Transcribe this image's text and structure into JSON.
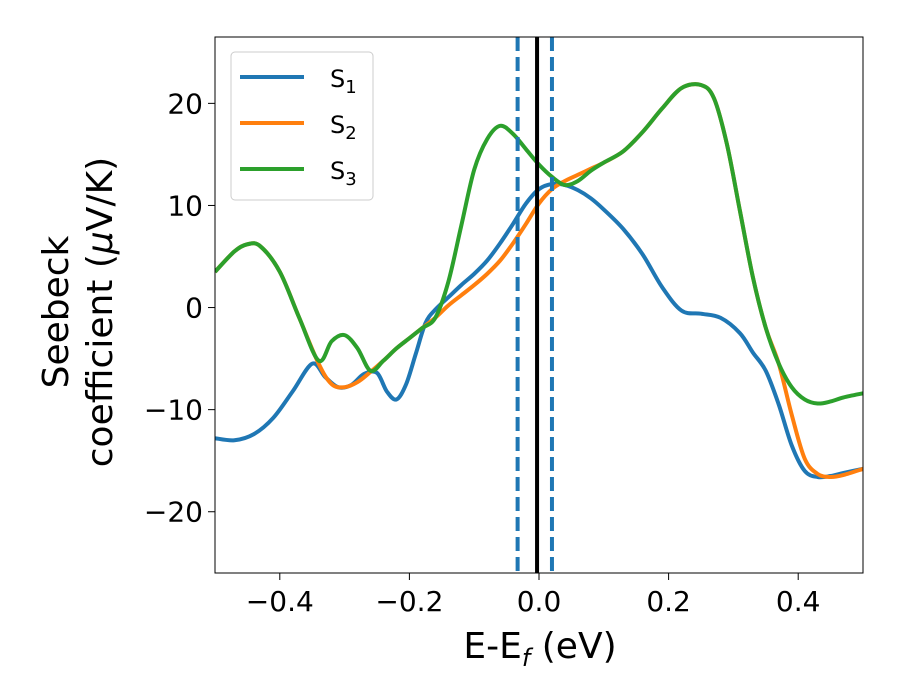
{
  "chart_data": {
    "type": "line",
    "xlabel": {
      "main": "E-E",
      "sub": "f",
      "tail": " (eV)"
    },
    "ylabel": {
      "line1": "Seebeck",
      "line2_pre": "coefficient  (",
      "line2_mu": "μ",
      "line2_post": "V/K)"
    },
    "xlim": [
      -0.5,
      0.5
    ],
    "ylim": [
      -26,
      26.5
    ],
    "xticks": [
      -0.4,
      -0.2,
      0.0,
      0.2,
      0.4
    ],
    "xtick_labels": [
      "−0.4",
      "−0.2",
      "0.0",
      "0.2",
      "0.4"
    ],
    "yticks": [
      -20,
      -10,
      0,
      10,
      20
    ],
    "ytick_labels": [
      "−20",
      "−10",
      "0",
      "10",
      "20"
    ],
    "grid": false,
    "legend_position": "top-left",
    "vlines": [
      {
        "x": -0.033,
        "style": "dashed",
        "color": "#1f77b4"
      },
      {
        "x": -0.003,
        "style": "solid",
        "color": "#000000"
      },
      {
        "x": 0.02,
        "style": "dashed",
        "color": "#1f77b4"
      }
    ],
    "series": [
      {
        "name": "S",
        "sub": "1",
        "color": "#1f77b4",
        "x": [
          -0.5,
          -0.47,
          -0.44,
          -0.41,
          -0.38,
          -0.35,
          -0.33,
          -0.31,
          -0.29,
          -0.27,
          -0.25,
          -0.235,
          -0.22,
          -0.205,
          -0.19,
          -0.175,
          -0.16,
          -0.14,
          -0.12,
          -0.1,
          -0.08,
          -0.06,
          -0.04,
          -0.02,
          0.0,
          0.02,
          0.04,
          0.06,
          0.08,
          0.1,
          0.13,
          0.16,
          0.19,
          0.22,
          0.25,
          0.28,
          0.31,
          0.33,
          0.35,
          0.37,
          0.39,
          0.41,
          0.43,
          0.45,
          0.47,
          0.5
        ],
        "y": [
          -12.8,
          -13.0,
          -12.4,
          -10.8,
          -8.2,
          -5.5,
          -6.8,
          -7.8,
          -7.6,
          -6.5,
          -6.4,
          -8.2,
          -9.0,
          -7.5,
          -4.5,
          -1.5,
          -0.2,
          1.0,
          2.2,
          3.3,
          4.6,
          6.3,
          8.2,
          10.2,
          11.6,
          12.1,
          12.0,
          11.5,
          10.7,
          9.6,
          7.7,
          5.2,
          2.0,
          -0.3,
          -0.6,
          -1.0,
          -2.5,
          -4.4,
          -6.2,
          -9.5,
          -13.5,
          -16.0,
          -16.6,
          -16.5,
          -16.2,
          -15.8
        ]
      },
      {
        "name": "S",
        "sub": "2",
        "color": "#ff7f0e",
        "x": [
          -0.5,
          -0.47,
          -0.45,
          -0.43,
          -0.4,
          -0.37,
          -0.34,
          -0.32,
          -0.3,
          -0.28,
          -0.26,
          -0.24,
          -0.22,
          -0.2,
          -0.18,
          -0.16,
          -0.14,
          -0.12,
          -0.1,
          -0.08,
          -0.06,
          -0.04,
          -0.02,
          0.0,
          0.02,
          0.04,
          0.06,
          0.08,
          0.1,
          0.13,
          0.16,
          0.19,
          0.22,
          0.25,
          0.27,
          0.29,
          0.31,
          0.33,
          0.35,
          0.37,
          0.39,
          0.41,
          0.43,
          0.45,
          0.47,
          0.5
        ],
        "y": [
          3.5,
          5.5,
          6.2,
          6.0,
          3.5,
          -1.0,
          -5.5,
          -7.5,
          -7.8,
          -7.3,
          -6.3,
          -5.2,
          -4.0,
          -3.0,
          -2.0,
          -1.0,
          0.2,
          1.2,
          2.2,
          3.3,
          4.6,
          6.3,
          8.2,
          10.2,
          11.6,
          12.4,
          13.0,
          13.6,
          14.2,
          15.3,
          17.2,
          19.5,
          21.5,
          21.8,
          20.5,
          16.0,
          9.5,
          3.0,
          -2.0,
          -5.5,
          -10.5,
          -14.8,
          -16.3,
          -16.6,
          -16.4,
          -15.8
        ]
      },
      {
        "name": "S",
        "sub": "3",
        "color": "#2ca02c",
        "x": [
          -0.5,
          -0.47,
          -0.45,
          -0.43,
          -0.4,
          -0.37,
          -0.34,
          -0.32,
          -0.3,
          -0.28,
          -0.26,
          -0.24,
          -0.22,
          -0.2,
          -0.18,
          -0.16,
          -0.14,
          -0.12,
          -0.1,
          -0.08,
          -0.06,
          -0.04,
          -0.02,
          0.0,
          0.02,
          0.04,
          0.06,
          0.08,
          0.1,
          0.13,
          0.16,
          0.19,
          0.22,
          0.25,
          0.27,
          0.29,
          0.31,
          0.33,
          0.35,
          0.37,
          0.39,
          0.41,
          0.43,
          0.45,
          0.47,
          0.5
        ],
        "y": [
          3.5,
          5.5,
          6.2,
          6.0,
          3.5,
          -1.0,
          -5.2,
          -3.3,
          -2.7,
          -4.0,
          -6.2,
          -5.2,
          -4.0,
          -3.0,
          -2.0,
          -1.0,
          2.5,
          8.0,
          13.5,
          16.5,
          17.8,
          17.0,
          15.5,
          14.0,
          12.8,
          12.0,
          12.4,
          13.4,
          14.2,
          15.3,
          17.2,
          19.5,
          21.5,
          21.8,
          20.5,
          16.0,
          9.5,
          3.0,
          -2.0,
          -5.5,
          -7.8,
          -9.0,
          -9.4,
          -9.2,
          -8.8,
          -8.4
        ]
      }
    ]
  }
}
